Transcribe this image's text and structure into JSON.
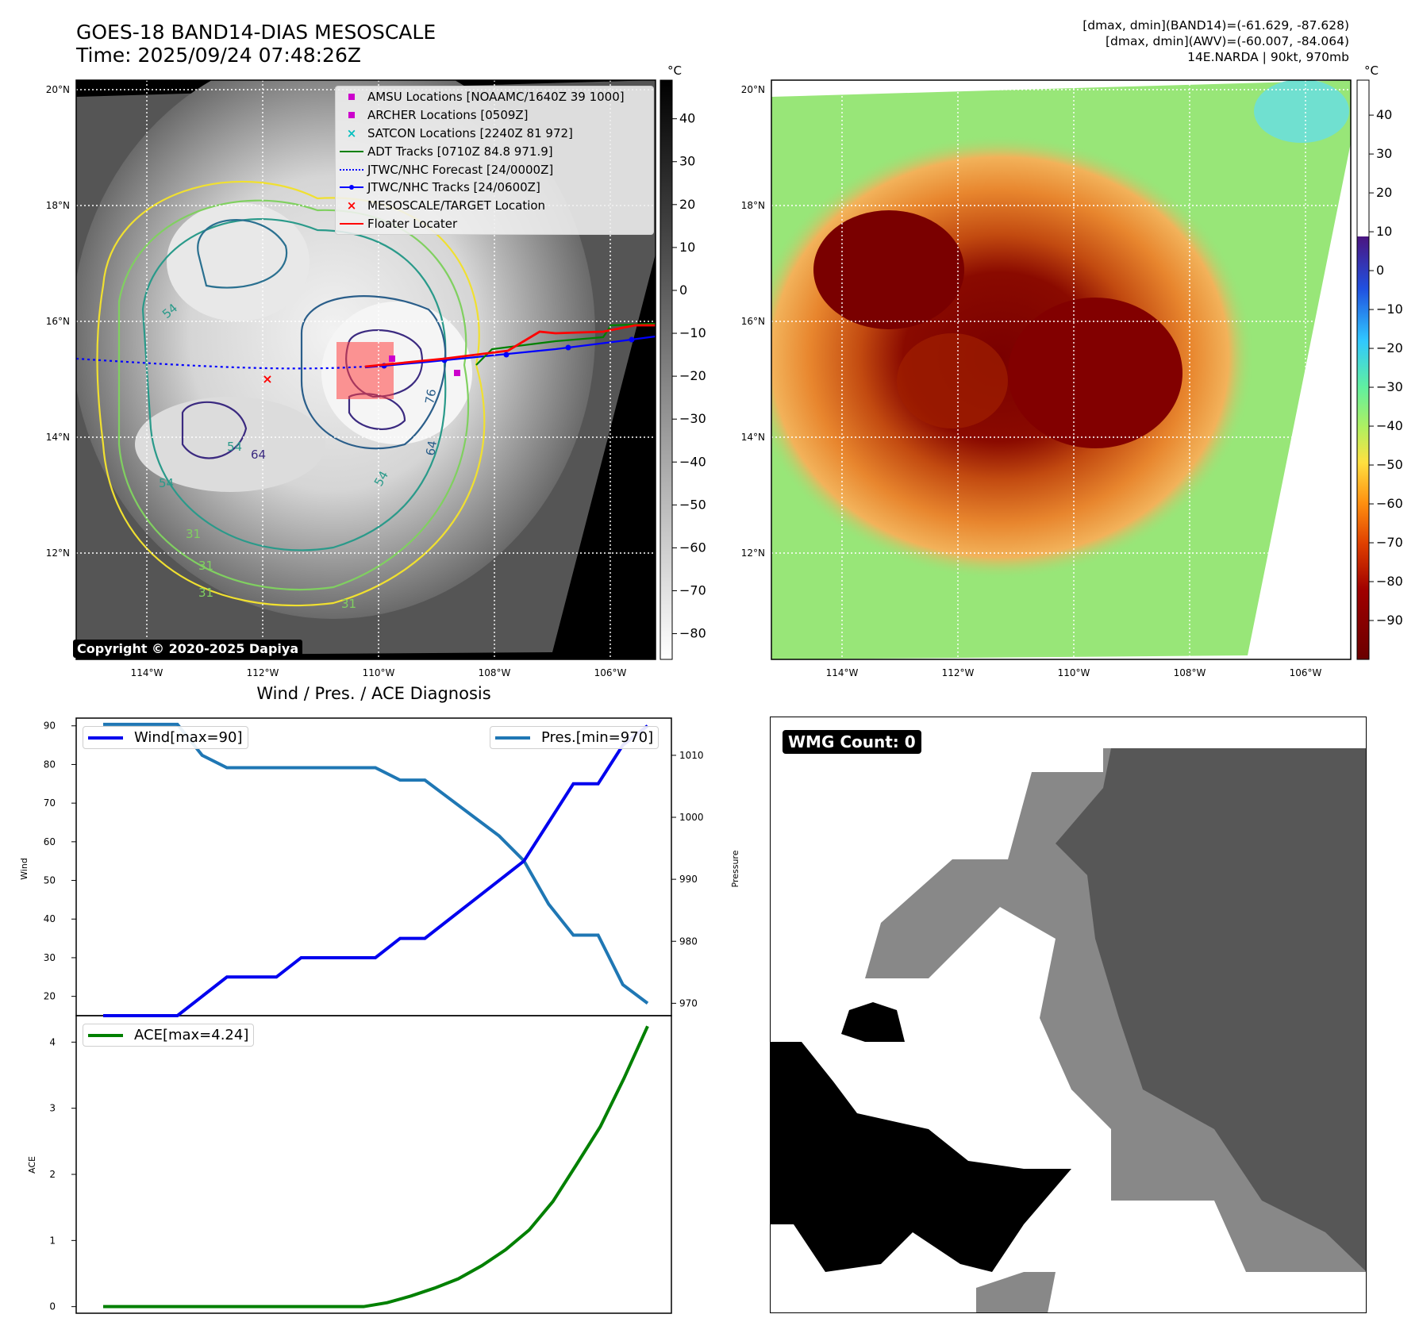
{
  "header": {
    "title_line1": "GOES-18 BAND14-DIAS MESOSCALE",
    "title_line2": "Time: 2025/09/24 07:48:26Z",
    "stats_line1": "[dmax, dmin](BAND14)=(-61.629, -87.628)",
    "stats_line2": "[dmax, dmin](AWV)=(-60.007, -84.064)",
    "stats_line3": "14E.NARDA | 90kt, 970mb"
  },
  "map_left": {
    "lat_labels": [
      "20°N",
      "18°N",
      "16°N",
      "14°N",
      "12°N"
    ],
    "lon_labels": [
      "114°W",
      "112°W",
      "110°W",
      "108°W",
      "106°W"
    ],
    "colorbar_unit": "°C",
    "colorbar_ticks": [
      "40",
      "30",
      "20",
      "10",
      "0",
      "−10",
      "−20",
      "−30",
      "−40",
      "−50",
      "−60",
      "−70",
      "−80"
    ],
    "contour_labels": [
      "54",
      "54",
      "64",
      "54",
      "31",
      "31",
      "31",
      "76",
      "64",
      "54",
      "31"
    ],
    "copyright": "Copyright © 2020-2025 Dapiya",
    "legend": [
      {
        "label": "AMSU Locations [NOAAMC/1640Z 39 1000]",
        "symbol": "square",
        "color": "#cc00cc"
      },
      {
        "label": "ARCHER Locations [0509Z]",
        "symbol": "square",
        "color": "#cc00cc"
      },
      {
        "label": "SATCON Locations [2240Z 81 972]",
        "symbol": "x",
        "color": "#00bfbf"
      },
      {
        "label": "ADT Tracks [0710Z 84.8 971.9]",
        "symbol": "line",
        "color": "#008000"
      },
      {
        "label": "JTWC/NHC Forecast [24/0000Z]",
        "symbol": "dotted",
        "color": "#0000ff"
      },
      {
        "label": "JTWC/NHC Tracks [24/0600Z]",
        "symbol": "line-dot",
        "color": "#0000ff"
      },
      {
        "label": "MESOSCALE/TARGET Location",
        "symbol": "x",
        "color": "#ff0000"
      },
      {
        "label": "Floater Locater",
        "symbol": "line",
        "color": "#ff0000"
      }
    ]
  },
  "map_right": {
    "lat_labels": [
      "20°N",
      "18°N",
      "16°N",
      "14°N",
      "12°N"
    ],
    "lon_labels": [
      "114°W",
      "112°W",
      "110°W",
      "108°W",
      "106°W"
    ],
    "colorbar_unit": "°C",
    "colorbar_ticks": [
      "40",
      "30",
      "20",
      "10",
      "0",
      "−10",
      "−20",
      "−30",
      "−40",
      "−50",
      "−60",
      "−70",
      "−80",
      "−90"
    ]
  },
  "diagnosis": {
    "title": "Wind / Pres. / ACE Diagnosis",
    "wind_legend": "Wind[max=90]",
    "pres_legend": "Pres.[min=970]",
    "ace_legend": "ACE[max=4.24]",
    "ylabel_wind": "Wind",
    "ylabel_pres": "Pressure",
    "ylabel_ace": "ACE",
    "wind_ticks": [
      "90",
      "80",
      "70",
      "60",
      "50",
      "40",
      "30",
      "20"
    ],
    "pres_ticks": [
      "1010",
      "1000",
      "990",
      "980",
      "970"
    ],
    "ace_ticks": [
      "4",
      "3",
      "2",
      "1",
      "0"
    ]
  },
  "wmg": {
    "label": "WMG Count: 0"
  },
  "colors": {
    "wind": "#0000ee",
    "pressure": "#1f77b4",
    "ace": "#008000"
  },
  "chart_data": [
    {
      "type": "line",
      "title": "Wind / Pres. / ACE Diagnosis",
      "ylabel": "Wind",
      "y2label": "Pressure",
      "ylim": [
        15,
        92
      ],
      "y2lim": [
        968,
        1016
      ],
      "series": [
        {
          "name": "Wind[max=90]",
          "axis": "left",
          "values": [
            15,
            15,
            15,
            15,
            20,
            25,
            25,
            25,
            30,
            30,
            30,
            30,
            35,
            35,
            40,
            45,
            50,
            55,
            65,
            75,
            75,
            85,
            90
          ]
        },
        {
          "name": "Pres.[min=970]",
          "axis": "right",
          "values": [
            1015,
            1015,
            1015,
            1015,
            1010,
            1008,
            1008,
            1008,
            1008,
            1008,
            1008,
            1008,
            1006,
            1006,
            1003,
            1000,
            997,
            993,
            986,
            981,
            981,
            973,
            970
          ]
        }
      ]
    },
    {
      "type": "line",
      "ylabel": "ACE",
      "ylim": [
        -0.1,
        4.4
      ],
      "series": [
        {
          "name": "ACE[max=4.24]",
          "values": [
            0,
            0,
            0,
            0,
            0,
            0,
            0,
            0,
            0,
            0,
            0,
            0,
            0.06,
            0.16,
            0.28,
            0.42,
            0.62,
            0.86,
            1.16,
            1.59,
            2.15,
            2.72,
            3.45,
            4.24
          ]
        }
      ]
    }
  ]
}
